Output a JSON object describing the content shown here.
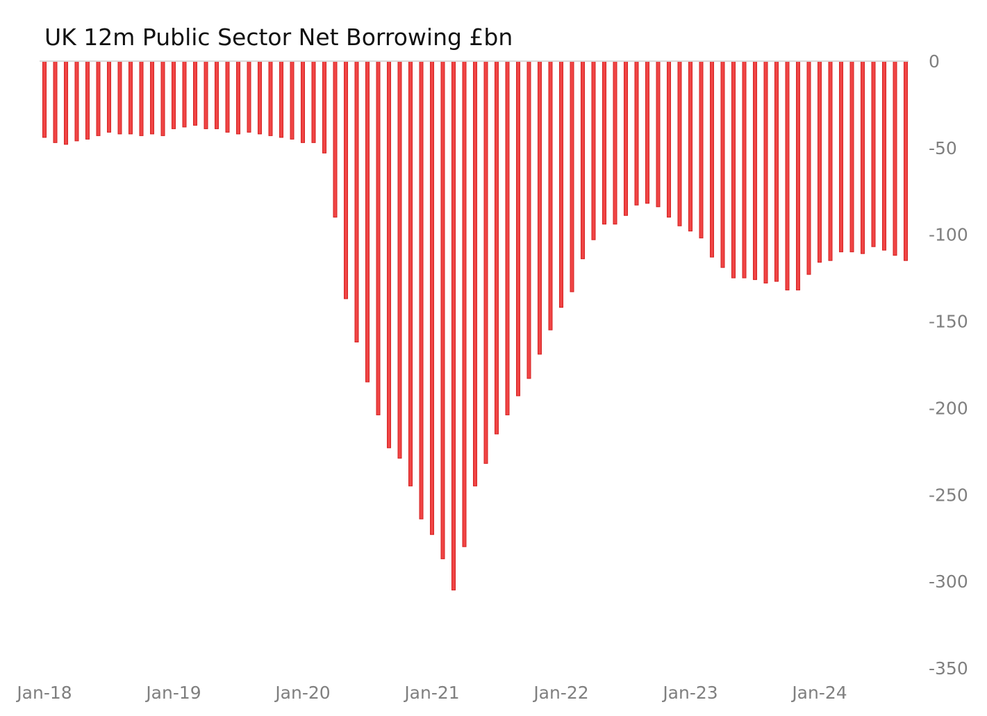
{
  "chart_data": {
    "type": "bar",
    "title": "UK 12m Public Sector Net Borrowing £bn",
    "xlabel": "",
    "ylabel": "",
    "ylim": [
      -350,
      0
    ],
    "y_ticks": [
      0,
      -50,
      -100,
      -150,
      -200,
      -250,
      -300,
      -350
    ],
    "y_tick_labels": [
      "0",
      "-50",
      "-100",
      "-150",
      "-200",
      "-250",
      "-300",
      "-350"
    ],
    "y_axis_side": "right",
    "x_ticks": [
      {
        "index": 0,
        "label": "Jan-18"
      },
      {
        "index": 12,
        "label": "Jan-19"
      },
      {
        "index": 24,
        "label": "Jan-20"
      },
      {
        "index": 36,
        "label": "Jan-21"
      },
      {
        "index": 48,
        "label": "Jan-22"
      },
      {
        "index": 60,
        "label": "Jan-23"
      },
      {
        "index": 72,
        "label": "Jan-24"
      }
    ],
    "grid": false,
    "bar_color": "#f04545",
    "bar_edge_color": "#d42020",
    "zero_line_color": "#d9d9d9",
    "x_start": "Jan-18",
    "x_frequency": "monthly",
    "values": [
      -44,
      -47,
      -48,
      -46,
      -45,
      -43,
      -41,
      -42,
      -42,
      -43,
      -42,
      -43,
      -39,
      -38,
      -37,
      -39,
      -39,
      -41,
      -42,
      -41,
      -42,
      -43,
      -44,
      -45,
      -47,
      -47,
      -53,
      -90,
      -137,
      -162,
      -185,
      -204,
      -223,
      -229,
      -245,
      -264,
      -273,
      -287,
      -305,
      -280,
      -245,
      -232,
      -215,
      -204,
      -193,
      -183,
      -169,
      -155,
      -142,
      -133,
      -114,
      -103,
      -94,
      -94,
      -89,
      -83,
      -82,
      -84,
      -90,
      -95,
      -98,
      -102,
      -113,
      -119,
      -125,
      -125,
      -126,
      -128,
      -127,
      -132,
      -132,
      -123,
      -116,
      -115,
      -110,
      -110,
      -111,
      -107,
      -109,
      -112,
      -115
    ]
  }
}
